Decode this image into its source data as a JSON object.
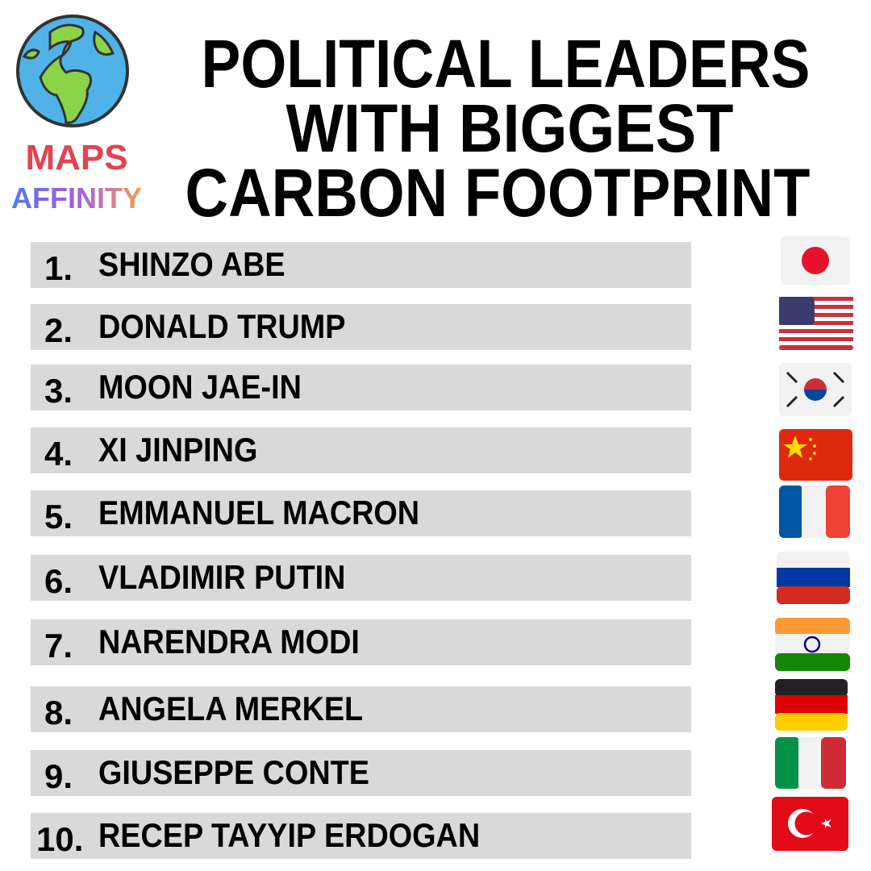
{
  "logo": {
    "line1": "MAPS",
    "line2": "AFFINITY"
  },
  "title": {
    "lines": [
      "POLITICAL LEADERS",
      "WITH BIGGEST",
      "CARBON FOOTPRINT"
    ]
  },
  "list": {
    "items": [
      {
        "rank": "1.",
        "name": "SHINZO ABE"
      },
      {
        "rank": "2.",
        "name": "DONALD TRUMP"
      },
      {
        "rank": "3.",
        "name": "MOON JAE-IN"
      },
      {
        "rank": "4.",
        "name": "XI JINPING"
      },
      {
        "rank": "5.",
        "name": "EMMANUEL MACRON"
      },
      {
        "rank": "6.",
        "name": "VLADIMIR PUTIN"
      },
      {
        "rank": "7.",
        "name": "NARENDRA MODI"
      },
      {
        "rank": "8.",
        "name": "ANGELA MERKEL"
      },
      {
        "rank": "9.",
        "name": "GIUSEPPE CONTE"
      },
      {
        "rank": "10.",
        "name": "RECEP TAYYIP ERDOGAN"
      }
    ]
  }
}
